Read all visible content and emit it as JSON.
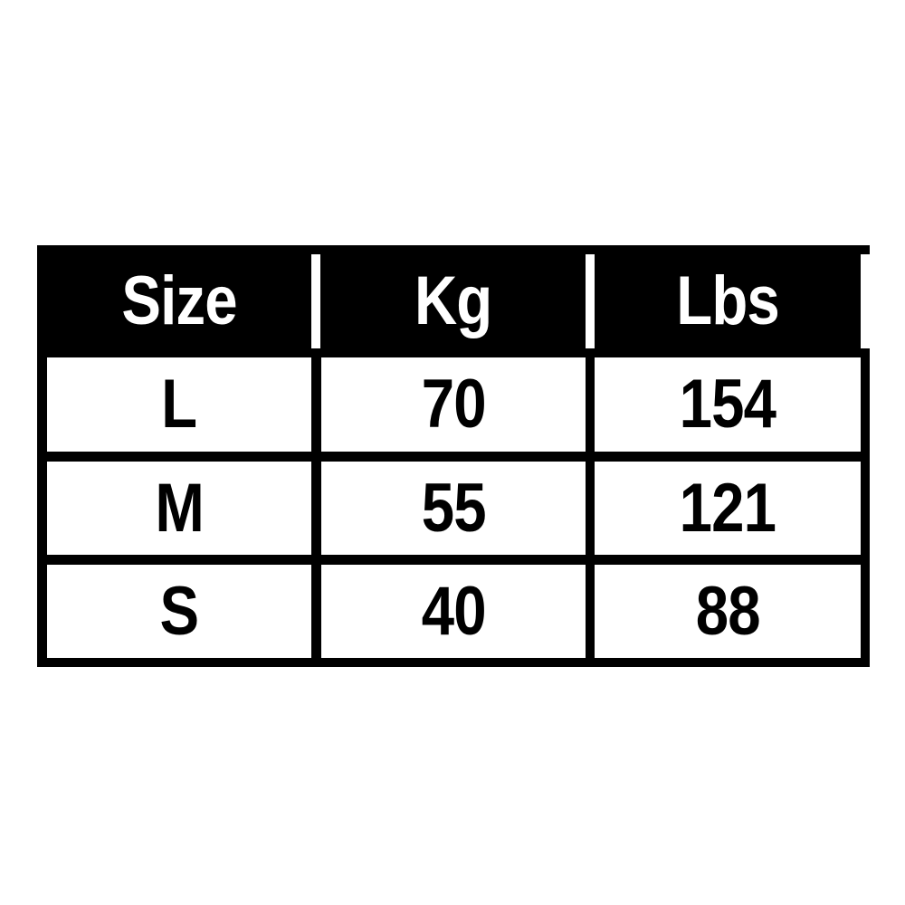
{
  "table": {
    "headers": [
      "Size",
      "Kg",
      "Lbs"
    ],
    "rows": [
      [
        "L",
        "70",
        "154"
      ],
      [
        "M",
        "55",
        "121"
      ],
      [
        "S",
        "40",
        "88"
      ]
    ]
  },
  "colors": {
    "header_bg": "#000000",
    "header_text": "#ffffff",
    "cell_bg": "#ffffff",
    "border": "#000000"
  }
}
